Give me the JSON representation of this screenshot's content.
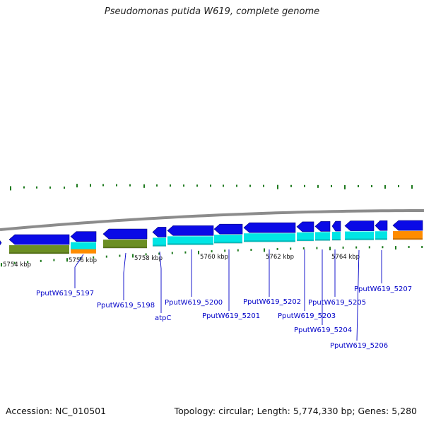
{
  "title": "Pseudomonas putida W619, complete genome",
  "accession": "Accession: NC_010501",
  "summary": "Topology: circular; Length: 5,774,330 bp; Genes: 5,280",
  "colors": {
    "cds": "#0a0ae6",
    "cds_outline": "#000080",
    "backbone": "#8c8c8c",
    "gc_skew_tick": "#1e7a1e",
    "cog_olive": "#6b8e23",
    "cog_cyan": "#00e5e5",
    "cog_orange": "#ff8c00",
    "label": "#0000c8"
  },
  "scale_labels": [
    "5754 kbp",
    "5756 kbp",
    "5758 kbp",
    "5760 kbp",
    "5762 kbp",
    "5764 kbp"
  ],
  "gene_labels": [
    "PputW619_5197",
    "PputW619_5198",
    "atpC",
    "PputW619_5200",
    "PputW619_5201",
    "PputW619_5202",
    "PputW619_5203",
    "PputW619_5204",
    "PputW619_5205",
    "PputW619_5206",
    "PputW619_5207"
  ]
}
